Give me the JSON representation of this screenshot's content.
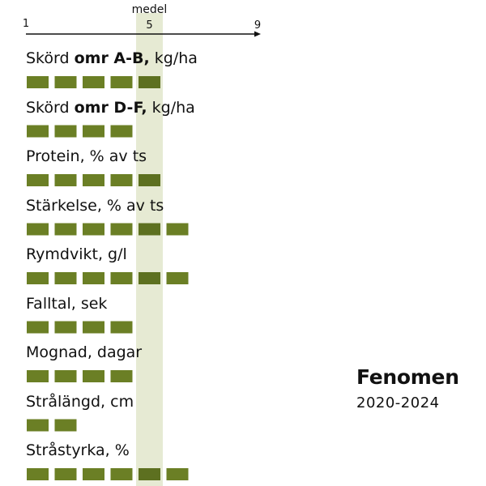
{
  "colors": {
    "bar": "#6b7f25",
    "bar_highlight": "#5d7020",
    "medel_band": "#e6ead3",
    "axis": "#111111"
  },
  "chart_data": {
    "type": "bar",
    "scale": {
      "min": 1,
      "max": 9,
      "tick_labels": [
        "1",
        "5",
        "9"
      ],
      "medel_label": "medel",
      "medel_value": 5
    },
    "rows": [
      {
        "label_pre": "Skörd ",
        "label_bold": "omr A-B,",
        "label_post": " kg/ha",
        "value": 5
      },
      {
        "label_pre": "Skörd ",
        "label_bold": "omr D-F,",
        "label_post": " kg/ha",
        "value": 4
      },
      {
        "label_pre": "Protein, % av ts",
        "label_bold": "",
        "label_post": "",
        "value": 5
      },
      {
        "label_pre": "Stärkelse, % av ts",
        "label_bold": "",
        "label_post": "",
        "value": 6
      },
      {
        "label_pre": "Rymdvikt, g/l",
        "label_bold": "",
        "label_post": "",
        "value": 6
      },
      {
        "label_pre": "Falltal, sek",
        "label_bold": "",
        "label_post": "",
        "value": 4
      },
      {
        "label_pre": "Mognad, dagar",
        "label_bold": "",
        "label_post": "",
        "value": 4
      },
      {
        "label_pre": "Strålängd, cm",
        "label_bold": "",
        "label_post": "",
        "value": 2
      },
      {
        "label_pre": "Stråstyrka, %",
        "label_bold": "",
        "label_post": "",
        "value": 6
      }
    ]
  },
  "legend": {
    "title": "Fenomen",
    "subtitle": "2020-2024"
  }
}
